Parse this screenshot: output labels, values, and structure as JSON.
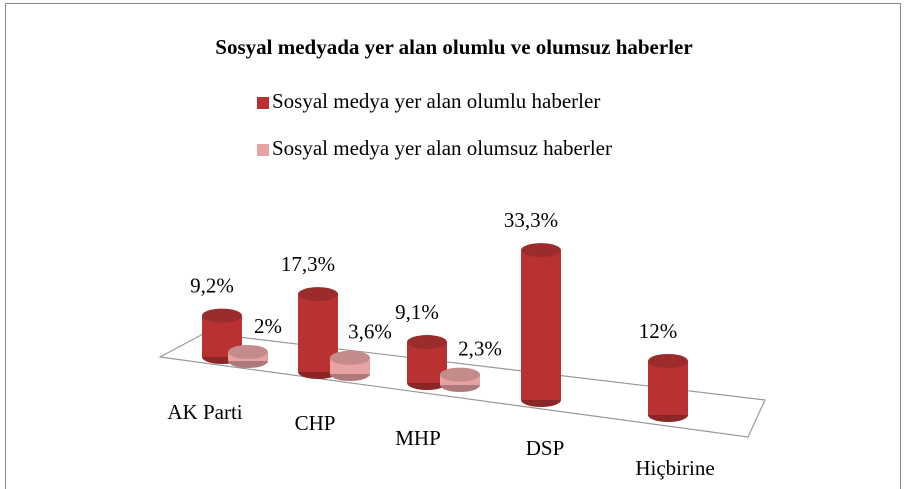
{
  "chart_data": {
    "type": "bar",
    "title": "Sosyal medyada yer alan olumlu ve olumsuz haberler",
    "categories": [
      "AK Parti",
      "CHP",
      "MHP",
      "DSP",
      "Hiçbirine"
    ],
    "series": [
      {
        "name": "Sosyal medya yer alan olumlu haberler",
        "color": "#b83232",
        "values": [
          9.2,
          17.3,
          9.1,
          33.3,
          12
        ],
        "value_labels": [
          "9,2%",
          "17,3%",
          "9,1%",
          "33,3%",
          "12%"
        ]
      },
      {
        "name": "Sosyal medya yer alan olumsuz haberler",
        "color": "#e7a3a3",
        "values": [
          2,
          3.6,
          2.3,
          null,
          null
        ],
        "value_labels": [
          "2%",
          "3,6%",
          "2,3%",
          null,
          null
        ]
      }
    ]
  }
}
